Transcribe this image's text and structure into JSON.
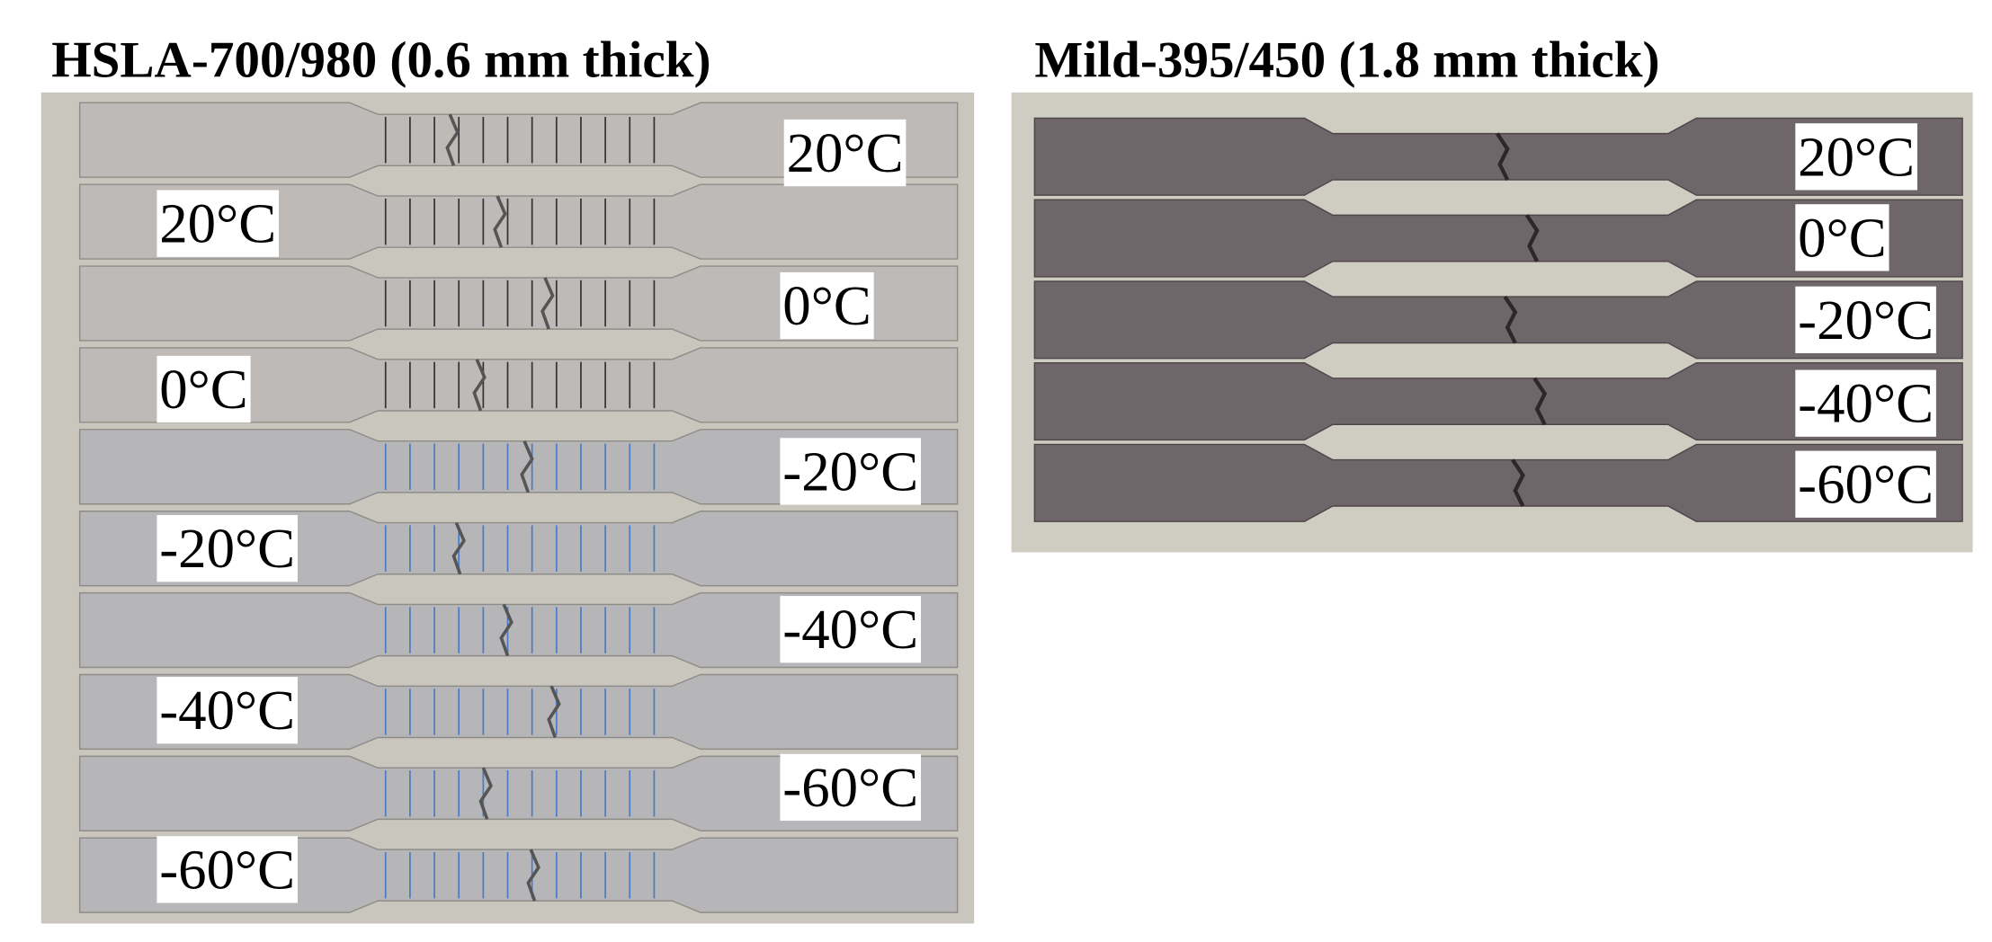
{
  "panels": [
    {
      "title": "HSLA-700/980 (0.6 mm thick)",
      "labels": [
        "20°C",
        "20°C",
        "0°C",
        "0°C",
        "-20°C",
        "-20°C",
        "-40°C",
        "-40°C",
        "-60°C",
        "-60°C"
      ]
    },
    {
      "title": "Mild-395/450 (1.8 mm thick)",
      "labels": [
        "20°C",
        "0°C",
        "-20°C",
        "-40°C",
        "-60°C"
      ]
    }
  ]
}
